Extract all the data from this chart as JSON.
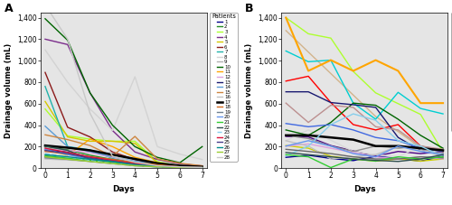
{
  "panel_A": {
    "patients": {
      "1": {
        "color": "#00008B",
        "days": [
          0,
          1,
          2,
          3,
          4,
          5,
          6,
          7
        ],
        "values": [
          170,
          150,
          100,
          60,
          40,
          20,
          10,
          5
        ],
        "lw": 1.0,
        "ls": "-"
      },
      "2": {
        "color": "#228B22",
        "days": [
          0,
          1,
          2,
          3,
          4,
          5,
          6,
          7
        ],
        "values": [
          200,
          170,
          120,
          80,
          50,
          30,
          15,
          8
        ],
        "lw": 1.0,
        "ls": "-"
      },
      "3": {
        "color": "#ADFF2F",
        "days": [
          0,
          1,
          2,
          3,
          4,
          5,
          6,
          7
        ],
        "values": [
          550,
          300,
          270,
          250,
          250,
          60,
          20,
          10
        ],
        "lw": 1.0,
        "ls": "-"
      },
      "4": {
        "color": "#7B2D8B",
        "days": [
          0,
          1,
          2,
          3,
          4,
          5,
          6,
          7
        ],
        "values": [
          1200,
          1150,
          700,
          350,
          150,
          80,
          40,
          20
        ],
        "lw": 1.0,
        "ls": "-"
      },
      "5": {
        "color": "#D4C800",
        "days": [
          0,
          1,
          2,
          3,
          4,
          5,
          6,
          7
        ],
        "values": [
          620,
          290,
          250,
          250,
          230,
          50,
          15,
          8
        ],
        "lw": 1.0,
        "ls": "-"
      },
      "6": {
        "color": "#8B1A1A",
        "days": [
          0,
          1,
          2,
          3,
          4,
          5,
          6,
          7
        ],
        "values": [
          890,
          380,
          290,
          150,
          80,
          40,
          20,
          10
        ],
        "lw": 1.0,
        "ls": "-"
      },
      "7": {
        "color": "#20B2AA",
        "days": [
          0,
          1,
          2,
          3,
          4,
          5,
          6,
          7
        ],
        "values": [
          760,
          200,
          170,
          90,
          50,
          25,
          12,
          5
        ],
        "lw": 1.0,
        "ls": "-"
      },
      "8": {
        "color": "#D3D3D3",
        "days": [
          0,
          1,
          2,
          3,
          4,
          5,
          6,
          7
        ],
        "values": [
          1100,
          800,
          550,
          350,
          850,
          200,
          130,
          80
        ],
        "lw": 1.0,
        "ls": "-"
      },
      "9": {
        "color": "#B0B0B0",
        "days": [
          0,
          1,
          2,
          3,
          4,
          5,
          6,
          7
        ],
        "values": [
          190,
          160,
          90,
          55,
          35,
          15,
          8,
          5
        ],
        "lw": 1.0,
        "ls": "-"
      },
      "10": {
        "color": "#006400",
        "days": [
          0,
          1,
          2,
          3,
          4,
          5,
          6,
          7
        ],
        "values": [
          1390,
          1190,
          700,
          400,
          200,
          100,
          50,
          200
        ],
        "lw": 1.0,
        "ls": "-"
      },
      "11": {
        "color": "#FFA500",
        "days": [
          0,
          1,
          2,
          3,
          4,
          5,
          6,
          7
        ],
        "values": [
          170,
          120,
          270,
          200,
          100,
          50,
          20,
          10
        ],
        "lw": 1.0,
        "ls": "-"
      },
      "12": {
        "color": "#DDA0DD",
        "days": [
          0,
          1,
          2,
          3,
          4,
          5,
          6,
          7
        ],
        "values": [
          175,
          165,
          145,
          100,
          60,
          20,
          10,
          5
        ],
        "lw": 1.0,
        "ls": "-"
      },
      "13": {
        "color": "#191970",
        "days": [
          0,
          1,
          2,
          3,
          4,
          5,
          6,
          7
        ],
        "values": [
          105,
          85,
          65,
          45,
          25,
          12,
          6,
          5
        ],
        "lw": 1.0,
        "ls": "-"
      },
      "14": {
        "color": "#5B9BD5",
        "days": [
          0,
          1,
          2,
          3,
          4,
          5,
          6,
          7
        ],
        "values": [
          390,
          200,
          155,
          105,
          65,
          42,
          22,
          12
        ],
        "lw": 1.0,
        "ls": "-"
      },
      "15": {
        "color": "#CD853F",
        "days": [
          0,
          1,
          2,
          3,
          4,
          5,
          6,
          7
        ],
        "values": [
          310,
          265,
          210,
          110,
          295,
          85,
          45,
          22
        ],
        "lw": 1.0,
        "ls": "-"
      },
      "16": {
        "color": "#C0C0C0",
        "days": [
          0,
          1,
          2,
          3,
          4,
          5,
          6,
          7
        ],
        "values": [
          85,
          75,
          65,
          50,
          45,
          25,
          12,
          5
        ],
        "lw": 1.0,
        "ls": "-"
      },
      "17": {
        "color": "#000000",
        "days": [
          0,
          1,
          2,
          3,
          4,
          5,
          6,
          7
        ],
        "values": [
          210,
          190,
          165,
          125,
          85,
          45,
          22,
          12
        ],
        "lw": 1.8,
        "ls": "-"
      },
      "18": {
        "color": "#D2691E",
        "days": [
          0,
          1,
          2,
          3,
          4,
          5,
          6,
          7
        ],
        "values": [
          155,
          135,
          105,
          82,
          52,
          32,
          12,
          5
        ],
        "lw": 1.0,
        "ls": "-"
      },
      "19": {
        "color": "#708090",
        "days": [
          0,
          1,
          2,
          3,
          4,
          5,
          6,
          7
        ],
        "values": [
          95,
          82,
          62,
          42,
          22,
          12,
          6,
          4
        ],
        "lw": 1.0,
        "ls": "-"
      },
      "20": {
        "color": "#6495ED",
        "days": [
          0,
          1,
          2,
          3,
          4,
          5,
          6,
          7
        ],
        "values": [
          175,
          125,
          82,
          52,
          32,
          12,
          6,
          5
        ],
        "lw": 1.0,
        "ls": "-"
      },
      "21": {
        "color": "#32CD32",
        "days": [
          0,
          1,
          2,
          3,
          4,
          5,
          6,
          7
        ],
        "values": [
          115,
          92,
          72,
          52,
          32,
          22,
          12,
          5
        ],
        "lw": 1.0,
        "ls": "-"
      },
      "22": {
        "color": "#2F4F4F",
        "days": [
          0,
          1,
          2,
          3,
          4,
          5,
          6,
          7
        ],
        "values": [
          205,
          165,
          82,
          62,
          42,
          22,
          12,
          5
        ],
        "lw": 1.0,
        "ls": "-"
      },
      "23": {
        "color": "#87CEEB",
        "days": [
          0,
          1,
          2,
          3,
          4,
          5,
          6,
          7
        ],
        "values": [
          135,
          105,
          72,
          42,
          22,
          12,
          6,
          4
        ],
        "lw": 1.0,
        "ls": "--"
      },
      "24": {
        "color": "#DC143C",
        "days": [
          0,
          1,
          2,
          3,
          4,
          5,
          6,
          7
        ],
        "values": [
          185,
          145,
          105,
          72,
          42,
          22,
          12,
          5
        ],
        "lw": 1.0,
        "ls": "-"
      },
      "25": {
        "color": "#483D8B",
        "days": [
          0,
          1,
          2,
          3,
          4,
          5,
          6,
          7
        ],
        "values": [
          165,
          135,
          92,
          62,
          32,
          16,
          8,
          4
        ],
        "lw": 1.0,
        "ls": "-"
      },
      "26": {
        "color": "#008B8B",
        "days": [
          0,
          1,
          2,
          3,
          4,
          5,
          6,
          7
        ],
        "values": [
          125,
          105,
          82,
          62,
          32,
          16,
          6,
          4
        ],
        "lw": 1.0,
        "ls": "-"
      },
      "27": {
        "color": "#9ACD32",
        "days": [
          0,
          1,
          2,
          3,
          4,
          5,
          6,
          7
        ],
        "values": [
          105,
          82,
          62,
          42,
          22,
          12,
          6,
          4
        ],
        "lw": 1.0,
        "ls": "-"
      },
      "28": {
        "color": "#C8C8C8",
        "days": [
          0,
          1,
          2,
          3,
          4,
          5,
          6,
          7
        ],
        "values": [
          1520,
          1200,
          510,
          110,
          55,
          22,
          12,
          5
        ],
        "lw": 1.0,
        "ls": "-"
      }
    }
  },
  "panel_B": {
    "patients": {
      "1": {
        "color": "#00008B",
        "days": [
          0,
          1,
          2,
          3,
          4,
          5,
          6,
          7
        ],
        "values": [
          100,
          120,
          90,
          70,
          110,
          90,
          65,
          110
        ],
        "lw": 1.0,
        "ls": "-"
      },
      "2": {
        "color": "#ADFF2F",
        "days": [
          0,
          1,
          2,
          3,
          4,
          5,
          6,
          7
        ],
        "values": [
          1400,
          1250,
          1210,
          900,
          700,
          600,
          500,
          150
        ],
        "lw": 1.0,
        "ls": "-"
      },
      "3": {
        "color": "#D2B48C",
        "days": [
          0,
          1,
          2,
          3,
          4,
          5,
          6,
          7
        ],
        "values": [
          1280,
          1080,
          880,
          680,
          480,
          340,
          190,
          100
        ],
        "lw": 1.0,
        "ls": "-"
      },
      "4": {
        "color": "#4B0082",
        "days": [
          0,
          1,
          2,
          3,
          4,
          5,
          6,
          7
        ],
        "values": [
          295,
          290,
          210,
          160,
          110,
          155,
          135,
          155
        ],
        "lw": 1.0,
        "ls": "-"
      },
      "5": {
        "color": "#CCCC00",
        "days": [
          0,
          1,
          2,
          3,
          4,
          5,
          6,
          7
        ],
        "values": [
          210,
          185,
          110,
          85,
          65,
          85,
          65,
          85
        ],
        "lw": 1.0,
        "ls": "-"
      },
      "6": {
        "color": "#FF0000",
        "days": [
          0,
          1,
          2,
          3,
          4,
          5,
          6,
          7
        ],
        "values": [
          810,
          855,
          610,
          405,
          355,
          405,
          205,
          155
        ],
        "lw": 1.0,
        "ls": "-"
      },
      "7": {
        "color": "#00CED1",
        "days": [
          0,
          1,
          2,
          3,
          4,
          5,
          6,
          7
        ],
        "values": [
          1090,
          990,
          1005,
          605,
          455,
          705,
          555,
          505
        ],
        "lw": 1.0,
        "ls": "-"
      },
      "8": {
        "color": "#D8D8D8",
        "days": [
          0,
          1,
          2,
          3,
          4,
          5,
          6,
          7
        ],
        "values": [
          255,
          355,
          260,
          155,
          125,
          105,
          205,
          165
        ],
        "lw": 1.0,
        "ls": "-"
      },
      "9": {
        "color": "#909090",
        "days": [
          0,
          1,
          2,
          3,
          4,
          5,
          6,
          7
        ],
        "values": [
          305,
          275,
          205,
          155,
          205,
          185,
          205,
          165
        ],
        "lw": 1.0,
        "ls": "-"
      },
      "10": {
        "color": "#006400",
        "days": [
          0,
          1,
          2,
          3,
          4,
          5,
          6,
          7
        ],
        "values": [
          355,
          305,
          425,
          605,
          585,
          455,
          305,
          185
        ],
        "lw": 1.0,
        "ls": "-"
      },
      "11": {
        "color": "#FFA500",
        "days": [
          0,
          1,
          2,
          3,
          4,
          5,
          6,
          7
        ],
        "values": [
          1400,
          905,
          1005,
          905,
          1005,
          905,
          605,
          605
        ],
        "lw": 1.5,
        "ls": "-"
      },
      "12": {
        "color": "#DDA0DD",
        "days": [
          0,
          1,
          2,
          3,
          4,
          5,
          6,
          7
        ],
        "values": [
          205,
          225,
          185,
          145,
          105,
          85,
          105,
          85
        ],
        "lw": 1.0,
        "ls": "-"
      },
      "13": {
        "color": "#191970",
        "days": [
          0,
          1,
          2,
          3,
          4,
          5,
          6,
          7
        ],
        "values": [
          710,
          710,
          610,
          590,
          565,
          285,
          165,
          135
        ],
        "lw": 1.0,
        "ls": "-"
      },
      "14": {
        "color": "#4169E1",
        "days": [
          0,
          1,
          2,
          3,
          4,
          5,
          6,
          7
        ],
        "values": [
          415,
          385,
          405,
          355,
          285,
          255,
          185,
          155
        ],
        "lw": 1.0,
        "ls": "-"
      },
      "15": {
        "color": "#BC8F8F",
        "days": [
          0,
          1,
          2,
          3,
          4,
          5,
          6,
          7
        ],
        "values": [
          605,
          425,
          585,
          565,
          385,
          355,
          205,
          175
        ],
        "lw": 1.0,
        "ls": "-"
      },
      "16": {
        "color": "#C0C0C0",
        "days": [
          0,
          1,
          2,
          3,
          4,
          5,
          6,
          7
        ],
        "values": [
          255,
          205,
          85,
          105,
          125,
          205,
          165,
          135
        ],
        "lw": 1.0,
        "ls": "-"
      },
      "17": {
        "color": "#000000",
        "days": [
          0,
          1,
          2,
          3,
          4,
          5,
          6,
          7
        ],
        "values": [
          305,
          305,
          285,
          265,
          205,
          205,
          185,
          165
        ],
        "lw": 1.8,
        "ls": "-"
      },
      "18": {
        "color": "#87CEEB",
        "days": [
          0,
          1,
          2,
          3,
          4,
          5,
          6,
          7
        ],
        "values": [
          115,
          205,
          405,
          505,
          445,
          255,
          205,
          105
        ],
        "lw": 1.0,
        "ls": "-"
      },
      "19": {
        "color": "#696969",
        "days": [
          0,
          1,
          2,
          3,
          4,
          5,
          6,
          7
        ],
        "values": [
          175,
          155,
          135,
          105,
          85,
          85,
          105,
          95
        ],
        "lw": 1.0,
        "ls": "-"
      },
      "20": {
        "color": "#6495ED",
        "days": [
          0,
          1,
          2,
          3,
          4,
          5,
          6,
          7
        ],
        "values": [
          205,
          255,
          205,
          135,
          105,
          205,
          155,
          125
        ],
        "lw": 1.0,
        "ls": "-"
      },
      "21": {
        "color": "#32CD32",
        "days": [
          0,
          1,
          2,
          3,
          4,
          5,
          6,
          7
        ],
        "values": [
          125,
          105,
          5,
          85,
          65,
          105,
          85,
          105
        ],
        "lw": 1.0,
        "ls": "-"
      },
      "22": {
        "color": "#2F4F4F",
        "days": [
          0,
          1,
          2,
          3,
          4,
          5,
          6,
          7
        ],
        "values": [
          145,
          125,
          105,
          85,
          72,
          62,
          85,
          125
        ],
        "lw": 1.0,
        "ls": "-"
      }
    }
  },
  "ylim": [
    0,
    1450
  ],
  "yticks": [
    0,
    200,
    400,
    600,
    800,
    1000,
    1200,
    1400
  ],
  "ytick_labels": [
    "0",
    "200",
    "400",
    "600",
    "800",
    "1,000",
    "1,200",
    "1,400"
  ],
  "xticks": [
    0,
    1,
    2,
    3,
    4,
    5,
    6,
    7
  ],
  "xlabel": "Days",
  "ylabel": "Drainage volume (mL)",
  "bg_color": "#E5E5E5",
  "legend_A_patients": [
    "1",
    "2",
    "3",
    "4",
    "5",
    "6",
    "7",
    "8",
    "9",
    "10",
    "11",
    "12",
    "13",
    "14",
    "15",
    "16",
    "17",
    "18",
    "19",
    "20",
    "21",
    "22",
    "23",
    "24",
    "25",
    "26",
    "27",
    "28"
  ],
  "legend_B_patients": [
    "1",
    "2",
    "3",
    "4",
    "5",
    "6",
    "7",
    "8",
    "9",
    "10",
    "11",
    "12",
    "13",
    "14",
    "15",
    "16",
    "17",
    "18",
    "19",
    "20",
    "21",
    "22"
  ]
}
